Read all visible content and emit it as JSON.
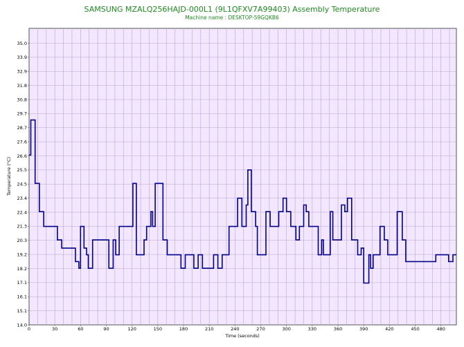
{
  "chart_data": {
    "type": "line",
    "title": "SAMSUNG MZALQ256HAJD-000L1 (9L1QFXV7A99403) Assembly Temperature",
    "subtitle": "Machine name : DESKTOP-59GQKB6",
    "xlabel": "Time (seconds)",
    "ylabel": "Temperature (°C)",
    "xlim": [
      0,
      498
    ],
    "ylim": [
      14.0,
      36.0
    ],
    "x_ticks": [
      0,
      30,
      60,
      90,
      120,
      150,
      180,
      210,
      240,
      270,
      300,
      330,
      360,
      390,
      420,
      450,
      480
    ],
    "y_ticks": [
      "14.0",
      "15.1",
      "16.1",
      "17.1",
      "18.2",
      "19.2",
      "20.3",
      "21.3",
      "22.4",
      "23.4",
      "24.5",
      "25.5",
      "26.6",
      "27.6",
      "28.7",
      "29.7",
      "30.8",
      "31.8",
      "32.9",
      "33.9",
      "35.0"
    ],
    "grid": true,
    "colors": {
      "background": "#f3e6ff",
      "grid": "#b9a5d0",
      "line": "#00008b",
      "title": "#1f8a1f"
    },
    "series": [
      {
        "step": true,
        "points": [
          [
            0,
            26.6
          ],
          [
            2,
            29.2
          ],
          [
            7,
            24.5
          ],
          [
            12,
            22.4
          ],
          [
            17,
            21.3
          ],
          [
            33,
            20.3
          ],
          [
            38,
            19.7
          ],
          [
            54,
            18.7
          ],
          [
            58,
            18.2
          ],
          [
            60,
            21.3
          ],
          [
            64,
            19.7
          ],
          [
            67,
            19.2
          ],
          [
            69,
            18.2
          ],
          [
            74,
            20.3
          ],
          [
            93,
            18.2
          ],
          [
            98,
            20.3
          ],
          [
            101,
            19.2
          ],
          [
            105,
            21.3
          ],
          [
            121,
            24.5
          ],
          [
            125,
            19.2
          ],
          [
            134,
            20.3
          ],
          [
            137,
            21.3
          ],
          [
            142,
            22.4
          ],
          [
            144,
            21.3
          ],
          [
            147,
            24.5
          ],
          [
            156,
            20.3
          ],
          [
            161,
            19.2
          ],
          [
            177,
            18.2
          ],
          [
            182,
            19.2
          ],
          [
            192,
            18.2
          ],
          [
            197,
            19.2
          ],
          [
            202,
            18.2
          ],
          [
            215,
            19.2
          ],
          [
            220,
            18.2
          ],
          [
            225,
            19.2
          ],
          [
            233,
            21.3
          ],
          [
            243,
            23.4
          ],
          [
            248,
            21.3
          ],
          [
            253,
            22.9
          ],
          [
            255,
            25.5
          ],
          [
            259,
            22.4
          ],
          [
            264,
            21.3
          ],
          [
            266,
            19.2
          ],
          [
            276,
            22.4
          ],
          [
            281,
            21.3
          ],
          [
            291,
            22.4
          ],
          [
            296,
            23.4
          ],
          [
            300,
            22.4
          ],
          [
            305,
            21.3
          ],
          [
            311,
            20.3
          ],
          [
            315,
            21.3
          ],
          [
            320,
            22.9
          ],
          [
            323,
            22.4
          ],
          [
            326,
            21.3
          ],
          [
            337,
            19.2
          ],
          [
            341,
            20.3
          ],
          [
            343,
            19.2
          ],
          [
            351,
            22.4
          ],
          [
            354,
            20.3
          ],
          [
            364,
            22.9
          ],
          [
            368,
            22.4
          ],
          [
            371,
            23.4
          ],
          [
            376,
            20.3
          ],
          [
            383,
            19.2
          ],
          [
            387,
            19.7
          ],
          [
            390,
            17.1
          ],
          [
            396,
            19.2
          ],
          [
            398,
            18.2
          ],
          [
            401,
            19.2
          ],
          [
            409,
            21.3
          ],
          [
            414,
            20.3
          ],
          [
            418,
            19.2
          ],
          [
            429,
            22.4
          ],
          [
            435,
            20.3
          ],
          [
            439,
            18.7
          ],
          [
            474,
            19.2
          ],
          [
            489,
            18.7
          ],
          [
            494,
            19.2
          ],
          [
            498,
            19.2
          ]
        ]
      }
    ]
  }
}
